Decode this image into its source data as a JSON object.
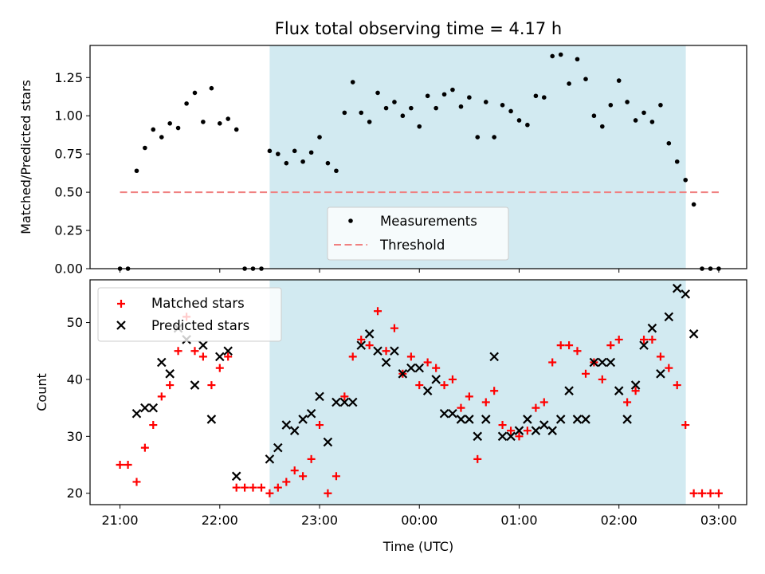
{
  "title": "Flux total observing time = 4.17 h",
  "xlabel": "Time (UTC)",
  "x_tick_labels": [
    "21:00",
    "22:00",
    "23:00",
    "00:00",
    "01:00",
    "02:00",
    "03:00"
  ],
  "colors": {
    "measurements": "#000000",
    "threshold": "#f08080",
    "matched": "#ff0000",
    "predicted": "#000000",
    "observing_window": "#add8e6"
  },
  "chart_data": [
    {
      "type": "scatter",
      "title": "Flux total observing time = 4.17 h",
      "xlabel": "",
      "ylabel": "Matched/Predicted stars",
      "x_unit": "hours since 21:00 UTC",
      "xlim": [
        -0.3,
        6.28
      ],
      "ylim": [
        0.0,
        1.46
      ],
      "y_ticks": [
        0.0,
        0.25,
        0.5,
        0.75,
        1.0,
        1.25
      ],
      "y_tick_labels": [
        "0.00",
        "0.25",
        "0.50",
        "0.75",
        "1.00",
        "1.25"
      ],
      "shaded_window": [
        1.5,
        5.67
      ],
      "threshold": {
        "name": "Threshold",
        "value": 0.5,
        "x_range": [
          0.0,
          6.0
        ]
      },
      "legend": [
        "Measurements",
        "Threshold"
      ],
      "series": [
        {
          "name": "Measurements",
          "x": [
            0.0,
            0.08,
            0.167,
            0.25,
            0.333,
            0.417,
            0.5,
            0.583,
            0.667,
            0.75,
            0.833,
            0.917,
            1.0,
            1.083,
            1.167,
            1.25,
            1.333,
            1.417,
            1.5,
            1.583,
            1.667,
            1.75,
            1.833,
            1.917,
            2.0,
            2.083,
            2.167,
            2.25,
            2.333,
            2.417,
            2.5,
            2.583,
            2.667,
            2.75,
            2.833,
            2.917,
            3.0,
            3.083,
            3.167,
            3.25,
            3.333,
            3.417,
            3.5,
            3.583,
            3.667,
            3.75,
            3.833,
            3.917,
            4.0,
            4.083,
            4.167,
            4.25,
            4.333,
            4.417,
            4.5,
            4.583,
            4.667,
            4.75,
            4.833,
            4.917,
            5.0,
            5.083,
            5.167,
            5.25,
            5.333,
            5.417,
            5.5,
            5.583,
            5.667,
            5.75,
            5.833,
            5.917,
            6.0
          ],
          "values": [
            0.0,
            0.0,
            0.64,
            0.79,
            0.91,
            0.86,
            0.95,
            0.92,
            1.08,
            1.15,
            0.96,
            1.18,
            0.95,
            0.98,
            0.91,
            0.0,
            0.0,
            0.0,
            0.77,
            0.75,
            0.69,
            0.77,
            0.7,
            0.76,
            0.86,
            0.69,
            0.64,
            1.02,
            1.22,
            1.02,
            0.96,
            1.15,
            1.05,
            1.09,
            1.0,
            1.05,
            0.93,
            1.13,
            1.05,
            1.14,
            1.17,
            1.06,
            1.12,
            0.86,
            1.09,
            0.86,
            1.07,
            1.03,
            0.97,
            0.94,
            1.13,
            1.12,
            1.39,
            1.4,
            1.21,
            1.37,
            1.24,
            1.0,
            0.93,
            1.07,
            1.23,
            1.09,
            0.97,
            1.02,
            0.96,
            1.07,
            0.82,
            0.7,
            0.58,
            0.42,
            0.0,
            0.0,
            0.0
          ]
        }
      ]
    },
    {
      "type": "scatter",
      "title": "",
      "xlabel": "Time (UTC)",
      "ylabel": "Count",
      "x_unit": "hours since 21:00 UTC",
      "xlim": [
        -0.3,
        6.28
      ],
      "ylim": [
        18.0,
        57.5
      ],
      "y_ticks": [
        20,
        30,
        40,
        50
      ],
      "y_tick_labels": [
        "20",
        "30",
        "40",
        "50"
      ],
      "shaded_window": [
        1.5,
        5.67
      ],
      "legend": [
        "Matched stars",
        "Predicted stars"
      ],
      "series": [
        {
          "name": "Matched stars",
          "x": [
            0.0,
            0.08,
            0.167,
            0.25,
            0.333,
            0.417,
            0.5,
            0.583,
            0.667,
            0.75,
            0.833,
            0.917,
            1.0,
            1.083,
            1.167,
            1.25,
            1.333,
            1.417,
            1.5,
            1.583,
            1.667,
            1.75,
            1.833,
            1.917,
            2.0,
            2.083,
            2.167,
            2.25,
            2.333,
            2.417,
            2.5,
            2.583,
            2.667,
            2.75,
            2.833,
            2.917,
            3.0,
            3.083,
            3.167,
            3.25,
            3.333,
            3.417,
            3.5,
            3.583,
            3.667,
            3.75,
            3.833,
            3.917,
            4.0,
            4.083,
            4.167,
            4.25,
            4.333,
            4.417,
            4.5,
            4.583,
            4.667,
            4.75,
            4.833,
            4.917,
            5.0,
            5.083,
            5.167,
            5.25,
            5.333,
            5.417,
            5.5,
            5.583,
            5.667,
            5.75,
            5.833,
            5.917,
            6.0
          ],
          "values": [
            25,
            25,
            22,
            28,
            32,
            37,
            39,
            45,
            51,
            45,
            44,
            39,
            42,
            44,
            21,
            21,
            21,
            21,
            20,
            21,
            22,
            24,
            23,
            26,
            32,
            20,
            23,
            37,
            44,
            47,
            46,
            52,
            45,
            49,
            41,
            44,
            39,
            43,
            42,
            39,
            40,
            35,
            37,
            26,
            36,
            38,
            32,
            31,
            30,
            31,
            35,
            36,
            43,
            46,
            46,
            45,
            41,
            43,
            40,
            46,
            47,
            36,
            38,
            47,
            47,
            44,
            42,
            39,
            32,
            20,
            20,
            20,
            20
          ]
        },
        {
          "name": "Predicted stars",
          "x": [
            0.167,
            0.25,
            0.333,
            0.417,
            0.5,
            0.583,
            0.667,
            0.75,
            0.833,
            0.917,
            1.0,
            1.083,
            1.167,
            1.5,
            1.583,
            1.667,
            1.75,
            1.833,
            1.917,
            2.0,
            2.083,
            2.167,
            2.25,
            2.333,
            2.417,
            2.5,
            2.583,
            2.667,
            2.75,
            2.833,
            2.917,
            3.0,
            3.083,
            3.167,
            3.25,
            3.333,
            3.417,
            3.5,
            3.583,
            3.667,
            3.75,
            3.833,
            3.917,
            4.0,
            4.083,
            4.167,
            4.25,
            4.333,
            4.417,
            4.5,
            4.583,
            4.667,
            4.75,
            4.833,
            4.917,
            5.0,
            5.083,
            5.167,
            5.25,
            5.333,
            5.417,
            5.5,
            5.583,
            5.667,
            5.75
          ],
          "values": [
            34,
            35,
            35,
            43,
            41,
            49,
            47,
            39,
            46,
            33,
            44,
            45,
            23,
            26,
            28,
            32,
            31,
            33,
            34,
            37,
            29,
            36,
            36,
            36,
            46,
            48,
            45,
            43,
            45,
            41,
            42,
            42,
            38,
            40,
            34,
            34,
            33,
            33,
            30,
            33,
            44,
            30,
            30,
            31,
            33,
            31,
            32,
            31,
            33,
            38,
            33,
            33,
            43,
            43,
            43,
            38,
            33,
            39,
            46,
            49,
            41,
            51,
            56,
            55,
            48
          ]
        }
      ]
    }
  ]
}
